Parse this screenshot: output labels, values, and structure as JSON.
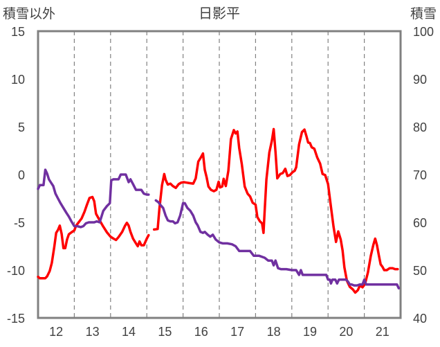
{
  "chart_data": {
    "type": "line",
    "title": "日影平",
    "ylabel_left": "積雪以外",
    "ylabel_right": "積雪",
    "y_left_ticks": [
      "15",
      "10",
      "5",
      "0",
      "-5",
      "-10",
      "-15"
    ],
    "y_right_ticks": [
      "100",
      "90",
      "80",
      "70",
      "60",
      "50",
      "40"
    ],
    "x_ticks": [
      "12",
      "13",
      "14",
      "15",
      "16",
      "17",
      "18",
      "19",
      "20",
      "21"
    ],
    "ylim_left": [
      -15,
      15
    ],
    "ylim_right": [
      40,
      100
    ],
    "xlim": [
      11.5,
      21.5
    ],
    "grid": "vertical-dashed",
    "colors": {
      "red_series": "#ff0000",
      "purple_series": "#7030a0",
      "frame": "#808080",
      "grid": "#808080"
    },
    "series": [
      {
        "axis": "right",
        "color": "#ff0000",
        "segments": [
          [
            [
              11.5,
              48.6
            ],
            [
              11.55,
              48.3
            ],
            [
              11.6,
              48.3
            ],
            [
              11.7,
              48.3
            ],
            [
              11.75,
              48.7
            ],
            [
              11.82,
              49.8
            ],
            [
              11.88,
              51.5
            ],
            [
              11.95,
              55
            ],
            [
              12.0,
              57.8
            ],
            [
              12.05,
              58.4
            ],
            [
              12.1,
              59.3
            ],
            [
              12.15,
              57.6
            ],
            [
              12.2,
              54.6
            ],
            [
              12.25,
              54.6
            ],
            [
              12.3,
              56.4
            ],
            [
              12.35,
              57.5
            ],
            [
              12.42,
              57.9
            ],
            [
              12.5,
              58.3
            ],
            [
              12.55,
              59.3
            ],
            [
              12.62,
              60.0
            ],
            [
              12.7,
              60.8
            ],
            [
              12.78,
              62.2
            ],
            [
              12.85,
              63.7
            ],
            [
              12.92,
              65.1
            ],
            [
              13.0,
              65.3
            ],
            [
              13.05,
              64.4
            ],
            [
              13.1,
              61.8
            ],
            [
              13.2,
              60.4
            ],
            [
              13.3,
              59.1
            ],
            [
              13.4,
              57.9
            ],
            [
              13.5,
              57.0
            ],
            [
              13.58,
              56.6
            ],
            [
              13.65,
              56.3
            ],
            [
              13.72,
              56.9
            ],
            [
              13.82,
              58.0
            ],
            [
              13.9,
              59.3
            ],
            [
              13.95,
              59.9
            ],
            [
              14.0,
              59.3
            ],
            [
              14.05,
              58.0
            ],
            [
              14.12,
              56.6
            ],
            [
              14.2,
              55.6
            ],
            [
              14.25,
              55.0
            ],
            [
              14.3,
              56.0
            ],
            [
              14.35,
              55.2
            ],
            [
              14.42,
              55.2
            ],
            [
              14.5,
              56.6
            ],
            [
              14.55,
              57.3
            ]
          ],
          [
            [
              14.7,
              58.5
            ],
            [
              14.8,
              58.6
            ],
            [
              14.85,
              63.0
            ],
            [
              14.92,
              67.8
            ],
            [
              14.98,
              70.1
            ],
            [
              15.02,
              68.9
            ],
            [
              15.08,
              67.9
            ],
            [
              15.15,
              68.1
            ],
            [
              15.22,
              67.6
            ],
            [
              15.3,
              67.2
            ],
            [
              15.38,
              68.0
            ],
            [
              15.45,
              68.3
            ],
            [
              15.52,
              68.4
            ],
            [
              15.6,
              68.3
            ],
            [
              15.68,
              68.2
            ],
            [
              15.78,
              68.1
            ],
            [
              15.85,
              69.2
            ],
            [
              15.92,
              72.7
            ],
            [
              16.0,
              73.7
            ],
            [
              16.05,
              74.4
            ],
            [
              16.1,
              71.0
            ],
            [
              16.15,
              69.4
            ],
            [
              16.2,
              67.5
            ],
            [
              16.27,
              66.8
            ],
            [
              16.35,
              66.5
            ],
            [
              16.42,
              66.8
            ],
            [
              16.48,
              68.5
            ],
            [
              16.52,
              67.3
            ],
            [
              16.58,
              67.5
            ],
            [
              16.62,
              69.1
            ],
            [
              16.68,
              67.6
            ],
            [
              16.75,
              70.8
            ],
            [
              16.82,
              77.4
            ],
            [
              16.9,
              79.3
            ],
            [
              16.95,
              78.6
            ],
            [
              17.0,
              79.0
            ],
            [
              17.05,
              75.5
            ],
            [
              17.12,
              72.2
            ],
            [
              17.2,
              67.5
            ],
            [
              17.28,
              66.0
            ],
            [
              17.35,
              65.4
            ],
            [
              17.42,
              64.1
            ],
            [
              17.5,
              63.7
            ],
            [
              17.55,
              61.1
            ],
            [
              17.62,
              60.2
            ],
            [
              17.68,
              59.8
            ],
            [
              17.72,
              57.8
            ],
            [
              17.75,
              62.2
            ],
            [
              17.8,
              69.0
            ],
            [
              17.88,
              74.6
            ],
            [
              17.95,
              77.1
            ],
            [
              18.0,
              79.5
            ],
            [
              18.05,
              74.8
            ],
            [
              18.1,
              69.2
            ],
            [
              18.18,
              70.1
            ],
            [
              18.25,
              70.3
            ],
            [
              18.32,
              71.2
            ],
            [
              18.38,
              69.7
            ],
            [
              18.45,
              69.9
            ],
            [
              18.52,
              70.5
            ],
            [
              18.58,
              70.8
            ],
            [
              18.62,
              71.5
            ],
            [
              18.7,
              76.3
            ],
            [
              18.78,
              78.9
            ],
            [
              18.85,
              79.4
            ],
            [
              18.9,
              78.1
            ],
            [
              18.95,
              76.7
            ],
            [
              19.0,
              76.6
            ],
            [
              19.05,
              75.7
            ],
            [
              19.12,
              75.4
            ],
            [
              19.2,
              73.6
            ],
            [
              19.28,
              72.3
            ],
            [
              19.35,
              70.1
            ],
            [
              19.42,
              69.9
            ],
            [
              19.5,
              68.0
            ],
            [
              19.58,
              63.2
            ],
            [
              19.65,
              59.1
            ],
            [
              19.72,
              55.9
            ],
            [
              19.78,
              58.1
            ],
            [
              19.85,
              56.4
            ],
            [
              19.9,
              54.1
            ],
            [
              19.95,
              50.6
            ],
            [
              20.02,
              47.8
            ],
            [
              20.1,
              46.5
            ],
            [
              20.18,
              46.0
            ],
            [
              20.25,
              45.3
            ],
            [
              20.32,
              45.8
            ],
            [
              20.38,
              46.8
            ],
            [
              20.45,
              46.4
            ],
            [
              20.52,
              47.1
            ],
            [
              20.6,
              49.5
            ],
            [
              20.68,
              53.0
            ],
            [
              20.75,
              55.3
            ],
            [
              20.8,
              56.6
            ],
            [
              20.85,
              55.2
            ],
            [
              20.9,
              53.1
            ],
            [
              20.95,
              51.2
            ],
            [
              21.0,
              50.7
            ],
            [
              21.05,
              50.0
            ],
            [
              21.12,
              50.0
            ],
            [
              21.2,
              50.4
            ],
            [
              21.28,
              50.4
            ],
            [
              21.35,
              50.2
            ],
            [
              21.42,
              50.2
            ]
          ]
        ]
      },
      {
        "axis": "left",
        "color": "#7030a0",
        "segments": [
          [
            [
              11.5,
              -1.5
            ],
            [
              11.55,
              -1.1
            ],
            [
              11.65,
              -1.1
            ],
            [
              11.7,
              0.5
            ],
            [
              11.75,
              0.1
            ],
            [
              11.8,
              -0.5
            ],
            [
              11.85,
              -0.8
            ],
            [
              11.92,
              -1.2
            ],
            [
              11.98,
              -2.0
            ],
            [
              12.05,
              -2.5
            ],
            [
              12.12,
              -3.0
            ],
            [
              12.2,
              -3.5
            ],
            [
              12.28,
              -4.0
            ],
            [
              12.35,
              -4.4
            ],
            [
              12.42,
              -4.9
            ],
            [
              12.5,
              -5.4
            ],
            [
              12.58,
              -5.4
            ],
            [
              12.68,
              -5.5
            ],
            [
              12.75,
              -5.4
            ],
            [
              12.82,
              -5.1
            ],
            [
              12.9,
              -5.0
            ],
            [
              12.98,
              -5.0
            ],
            [
              13.05,
              -5.0
            ],
            [
              13.12,
              -4.9
            ],
            [
              13.2,
              -5.0
            ],
            [
              13.3,
              -3.8
            ],
            [
              13.4,
              -3.3
            ],
            [
              13.48,
              -3.0
            ],
            [
              13.52,
              -0.6
            ],
            [
              13.58,
              -0.5
            ],
            [
              13.65,
              -0.5
            ],
            [
              13.72,
              -0.5
            ],
            [
              13.78,
              0.0
            ],
            [
              13.85,
              0.0
            ],
            [
              13.92,
              0.0
            ],
            [
              14.0,
              -0.8
            ],
            [
              14.05,
              -0.5
            ],
            [
              14.12,
              -1.0
            ],
            [
              14.2,
              -1.6
            ],
            [
              14.28,
              -1.6
            ],
            [
              14.35,
              -1.6
            ],
            [
              14.42,
              -2.0
            ],
            [
              14.5,
              -2.1
            ],
            [
              14.55,
              -2.1
            ]
          ],
          [
            [
              14.75,
              -2.7
            ],
            [
              14.82,
              -2.9
            ],
            [
              14.88,
              -3.2
            ],
            [
              14.95,
              -3.5
            ],
            [
              15.02,
              -4.3
            ],
            [
              15.08,
              -4.8
            ],
            [
              15.15,
              -4.9
            ],
            [
              15.22,
              -4.9
            ],
            [
              15.28,
              -5.1
            ],
            [
              15.35,
              -5.0
            ],
            [
              15.42,
              -4.3
            ],
            [
              15.5,
              -3.0
            ],
            [
              15.55,
              -3.0
            ],
            [
              15.62,
              -3.5
            ],
            [
              15.7,
              -3.8
            ],
            [
              15.78,
              -4.3
            ],
            [
              15.85,
              -5.0
            ],
            [
              15.9,
              -5.3
            ],
            [
              15.98,
              -6.0
            ],
            [
              16.05,
              -6.1
            ],
            [
              16.1,
              -6.0
            ],
            [
              16.18,
              -6.3
            ],
            [
              16.25,
              -6.5
            ],
            [
              16.32,
              -6.3
            ],
            [
              16.4,
              -6.8
            ],
            [
              16.5,
              -7.1
            ],
            [
              16.6,
              -7.2
            ],
            [
              16.72,
              -7.2
            ],
            [
              16.85,
              -7.3
            ],
            [
              16.95,
              -7.5
            ],
            [
              17.05,
              -8.0
            ],
            [
              17.2,
              -8.0
            ],
            [
              17.35,
              -8.0
            ],
            [
              17.45,
              -8.5
            ],
            [
              17.6,
              -8.5
            ],
            [
              17.75,
              -8.7
            ],
            [
              17.85,
              -9.0
            ],
            [
              17.95,
              -9.0
            ],
            [
              18.0,
              -9.5
            ],
            [
              18.05,
              -9.0
            ],
            [
              18.12,
              -9.8
            ],
            [
              18.2,
              -9.9
            ],
            [
              18.35,
              -9.9
            ],
            [
              18.5,
              -10.0
            ],
            [
              18.62,
              -10.0
            ],
            [
              18.7,
              -10.5
            ],
            [
              18.75,
              -10.0
            ],
            [
              18.8,
              -10.5
            ],
            [
              18.9,
              -10.5
            ],
            [
              19.05,
              -10.5
            ],
            [
              19.2,
              -10.5
            ],
            [
              19.35,
              -10.5
            ],
            [
              19.45,
              -10.5
            ],
            [
              19.5,
              -11.0
            ],
            [
              19.55,
              -11.0
            ],
            [
              19.58,
              -11.4
            ],
            [
              19.62,
              -11.0
            ],
            [
              19.7,
              -11.0
            ],
            [
              19.75,
              -11.4
            ],
            [
              19.8,
              -11.0
            ],
            [
              19.9,
              -11.0
            ],
            [
              20.0,
              -11.0
            ],
            [
              20.05,
              -11.2
            ],
            [
              20.1,
              -11.5
            ],
            [
              20.15,
              -11.5
            ],
            [
              20.22,
              -11.6
            ],
            [
              20.3,
              -11.6
            ],
            [
              20.38,
              -11.5
            ],
            [
              20.45,
              -11.5
            ],
            [
              20.5,
              -11.0
            ],
            [
              20.55,
              -11.5
            ],
            [
              20.7,
              -11.5
            ],
            [
              20.85,
              -11.5
            ],
            [
              21.0,
              -11.5
            ],
            [
              21.15,
              -11.5
            ],
            [
              21.3,
              -11.5
            ],
            [
              21.4,
              -11.5
            ],
            [
              21.45,
              -11.9
            ]
          ]
        ]
      }
    ]
  }
}
